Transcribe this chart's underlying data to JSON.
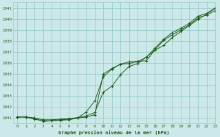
{
  "title": "Graphe pression niveau de la mer (hPa)",
  "background_color": "#cce8e8",
  "grid_color": "#99cccc",
  "line_color": "#1a5c1a",
  "marker_color": "#1a5c1a",
  "xlim": [
    -0.5,
    23
  ],
  "ylim": [
    1030.5,
    1041.5
  ],
  "yticks": [
    1031,
    1032,
    1033,
    1034,
    1035,
    1036,
    1037,
    1038,
    1039,
    1040,
    1041
  ],
  "xticks": [
    0,
    1,
    2,
    3,
    4,
    5,
    6,
    7,
    8,
    9,
    10,
    11,
    12,
    13,
    14,
    15,
    16,
    17,
    18,
    19,
    20,
    21,
    22,
    23
  ],
  "series1_x": [
    0,
    1,
    2,
    3,
    4,
    5,
    6,
    7,
    8,
    9,
    10,
    11,
    12,
    13,
    14,
    15,
    16,
    17,
    18,
    19,
    20,
    21,
    22,
    23
  ],
  "series1_y": [
    1031.1,
    1031.1,
    1030.9,
    1030.75,
    1030.75,
    1030.85,
    1030.9,
    1031.0,
    1031.1,
    1031.3,
    1035.0,
    1035.5,
    1035.9,
    1036.1,
    1036.15,
    1036.2,
    1037.2,
    1038.05,
    1038.55,
    1039.0,
    1039.45,
    1040.1,
    1040.35,
    1040.75
  ],
  "series2_x": [
    0,
    1,
    2,
    3,
    4,
    5,
    6,
    7,
    8,
    9,
    10,
    11,
    12,
    13,
    14,
    15,
    16,
    17,
    18,
    19,
    20,
    21,
    22,
    23
  ],
  "series2_y": [
    1031.1,
    1031.1,
    1031.0,
    1030.85,
    1030.85,
    1030.9,
    1030.95,
    1031.05,
    1031.2,
    1031.5,
    1033.35,
    1033.9,
    1034.95,
    1035.7,
    1035.95,
    1036.55,
    1037.15,
    1037.6,
    1038.3,
    1038.85,
    1039.4,
    1039.95,
    1040.45,
    1040.95
  ],
  "series3_x": [
    0,
    1,
    2,
    3,
    4,
    5,
    6,
    7,
    8,
    9,
    10,
    11,
    12,
    13,
    14,
    15,
    16,
    17,
    18,
    19,
    20,
    21,
    22,
    23
  ],
  "series3_y": [
    1031.1,
    1031.1,
    1031.0,
    1030.7,
    1030.75,
    1030.8,
    1030.85,
    1031.0,
    1031.55,
    1032.55,
    1034.75,
    1035.45,
    1035.9,
    1035.95,
    1036.15,
    1036.5,
    1037.35,
    1038.15,
    1038.75,
    1039.15,
    1039.6,
    1040.25,
    1040.5,
    1041.0
  ]
}
